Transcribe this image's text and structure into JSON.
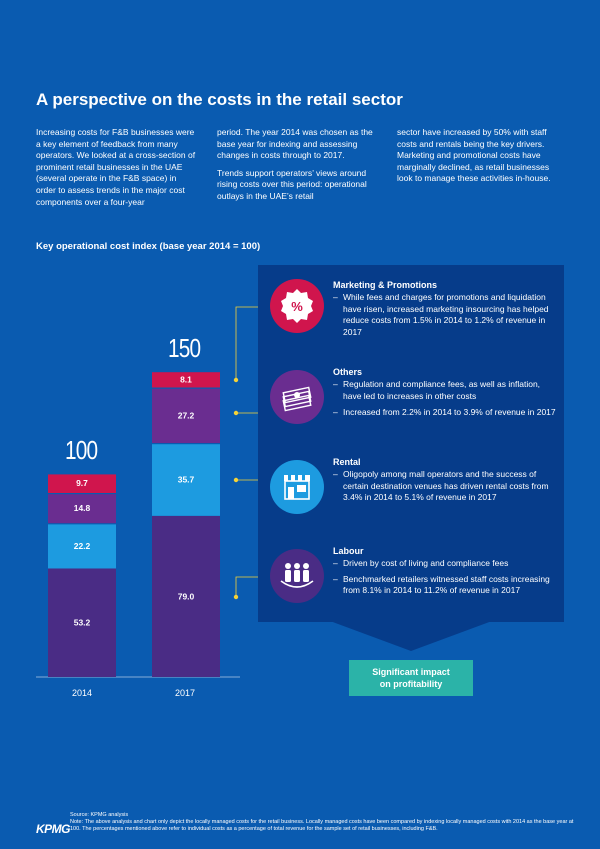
{
  "title": "A perspective on the costs in the retail sector",
  "intro": {
    "col1": "Increasing costs for F&B businesses were a key element of feedback from many operators. We looked at a cross-section of prominent retail businesses in the UAE (several operate in the F&B space) in order to assess trends in the major cost components over a four-year",
    "col2a": "period. The year 2014 was chosen as the base year for indexing and assessing changes in costs through to 2017.",
    "col2b": "Trends support operators’ views around rising costs over this period: operational outlays in the UAE’s retail",
    "col3": "sector have increased by 50% with staff costs and rentals being the key drivers. Marketing and promotional costs have marginally declined, as retail businesses look to manage these activities in-house."
  },
  "chart_data": {
    "type": "bar",
    "stacked": true,
    "title": "Key operational cost index (base year 2014 = 100)",
    "categories": [
      "2014",
      "2017"
    ],
    "totals": [
      "100",
      "150"
    ],
    "series": [
      {
        "key": "labour",
        "values": [
          53.2,
          79.0
        ],
        "labels": [
          "53.2",
          "79.0"
        ],
        "color": "#4a2c85"
      },
      {
        "key": "rental",
        "values": [
          22.2,
          35.7
        ],
        "labels": [
          "22.2",
          "35.7"
        ],
        "color": "#1d9be0"
      },
      {
        "key": "others",
        "values": [
          14.8,
          27.2
        ],
        "labels": [
          "14.8",
          "27.2"
        ],
        "color": "#6a2d90"
      },
      {
        "key": "marketing",
        "values": [
          9.7,
          8.1
        ],
        "labels": [
          "9.7",
          "8.1"
        ],
        "color": "#d0154d"
      }
    ],
    "ylim": [
      0,
      150
    ]
  },
  "panel": {
    "items": [
      {
        "title": "Marketing & Promotions",
        "icon": "percent-tag-icon",
        "color": "#d0154d",
        "bullets": [
          "While fees and charges for promotions and liquidation have risen, increased marketing insourcing has helped reduce costs from 1.5% in 2014 to 1.2% of revenue in 2017"
        ]
      },
      {
        "title": "Others",
        "icon": "money-stack-icon",
        "color": "#6a2d90",
        "bullets": [
          "Regulation and compliance fees, as well as inflation, have led to increases in other costs",
          "Increased from 2.2% in 2014 to 3.9% of revenue in 2017"
        ]
      },
      {
        "title": "Rental",
        "icon": "storefront-icon",
        "color": "#1d9be0",
        "bullets": [
          "Oligopoly among mall operators and the success of certain destination venues has driven rental costs from 3.4% in 2014 to 5.1% of revenue in 2017"
        ]
      },
      {
        "title": "Labour",
        "icon": "people-group-icon",
        "color": "#4a2c85",
        "bullets": [
          "Driven by cost of living and compliance fees",
          "Benchmarked retailers witnessed staff costs increasing from 8.1% in 2014 to 11.2% of revenue in 2017"
        ]
      }
    ],
    "dash": "–"
  },
  "impact": {
    "line1": "Significant impact",
    "line2": "on profitability"
  },
  "footer": {
    "source": "Source: KPMG analysis",
    "note": "Note: The above analysis and chart only depict the locally managed costs for the retail business. Locally managed costs have been compared by indexing locally managed costs with 2014 as the base year at 100. The percentages mentioned above refer to individual costs as a percentage of total revenue for the sample set of retail businesses, including F&B.",
    "logo": "KPMG"
  }
}
